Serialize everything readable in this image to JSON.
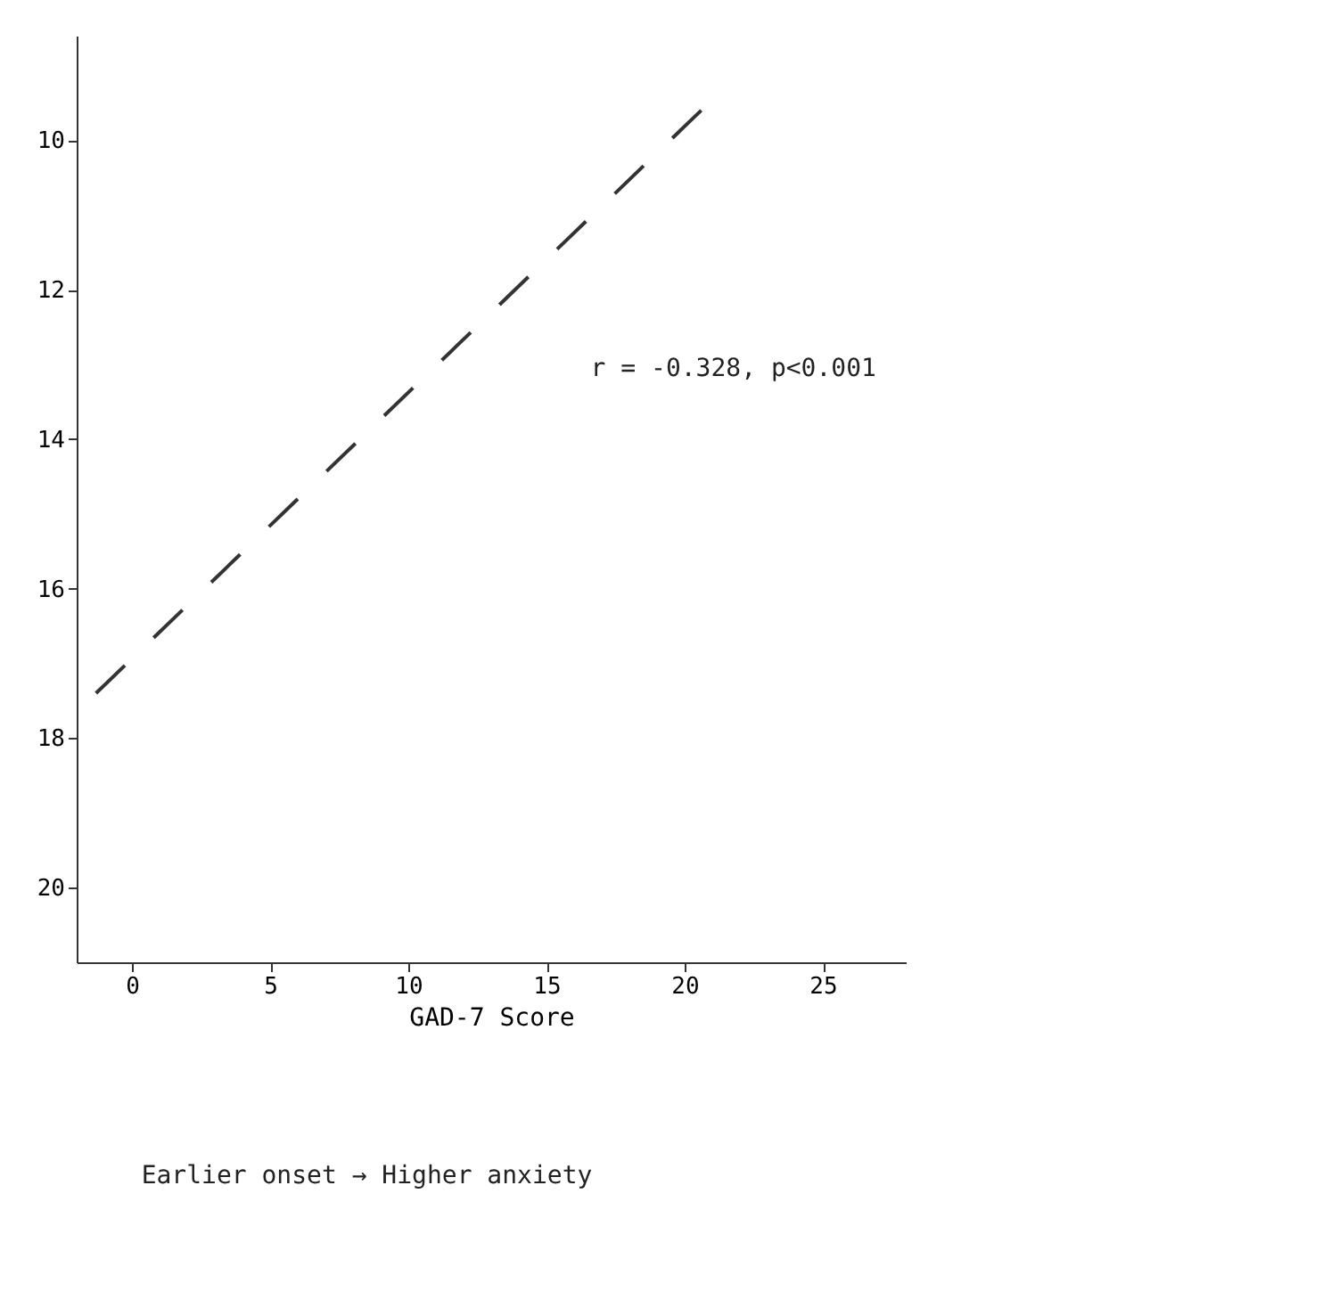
{
  "chart_data": {
    "type": "line",
    "xlabel": "GAD-7 Score",
    "annotations": [
      "r = -0.328, p<0.001",
      "Earlier onset → Higher anxiety"
    ],
    "series": [
      {
        "color": "#333333",
        "x": [
          -1.3,
          20.6
        ],
        "values": [
          17.4,
          9.6
        ]
      }
    ],
    "xlim": [
      -2,
      28
    ],
    "xticks": [
      0,
      5,
      10,
      15,
      20,
      25
    ],
    "ylim": [
      21,
      8.6
    ],
    "yticks": [
      10,
      12,
      14,
      16,
      18,
      20
    ],
    "grid": false,
    "line_style": "dashed",
    "marker": "none"
  }
}
